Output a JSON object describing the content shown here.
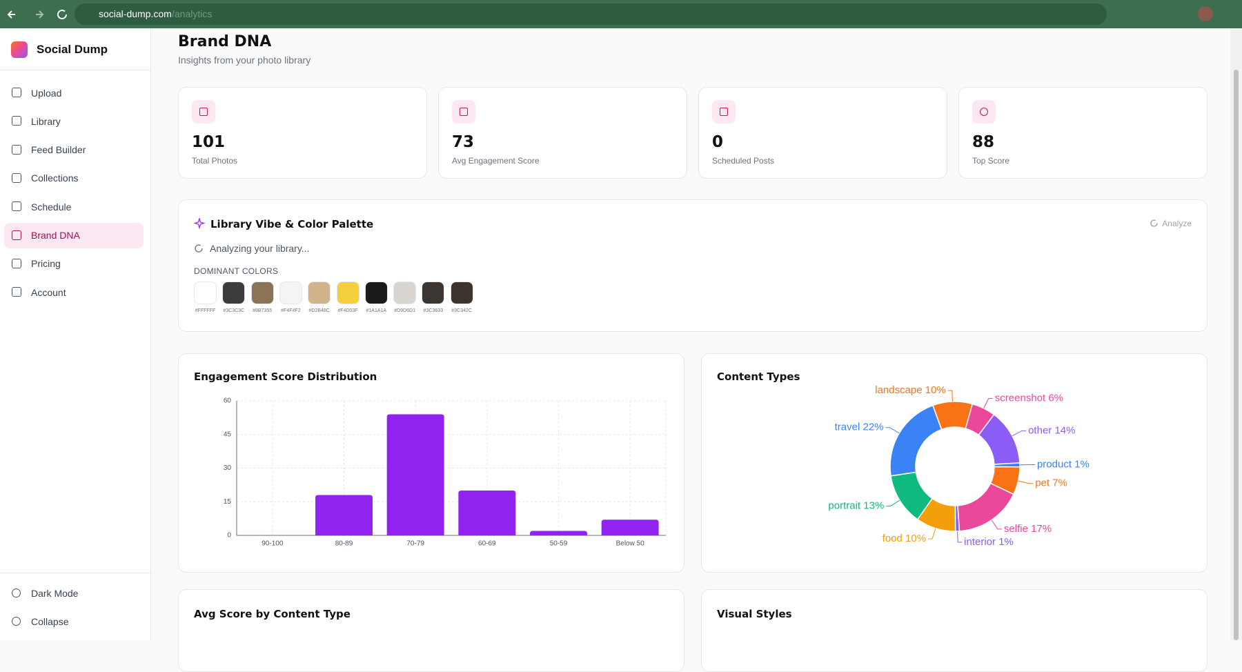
{
  "browser": {
    "url": "social-dump.com",
    "path": "/analytics"
  },
  "sidebar": {
    "brand": "Social Dump",
    "nav": [
      "Upload",
      "Library",
      "Feed Builder",
      "Collections",
      "Schedule",
      "Brand DNA",
      "Pricing",
      "Account"
    ],
    "active": "Brand DNA",
    "footer": [
      "Dark Mode",
      "Collapse"
    ]
  },
  "header": {
    "title": "Brand DNA",
    "subtitle": "Insights from your photo library"
  },
  "stats": [
    {
      "value": 101,
      "label": "Total Photos"
    },
    {
      "value": 73,
      "label": "Avg Engagement Score"
    },
    {
      "value": 0,
      "label": "Scheduled Posts"
    },
    {
      "value": 88,
      "label": "Top Score"
    }
  ],
  "palette": {
    "title": "Library Vibe & Color Palette",
    "action": "Analyze",
    "status": "Analyzing your library...",
    "heading": "DOMINANT COLORS",
    "colors": [
      "#FFFFFF",
      "#3C3C3C",
      "#8B7355",
      "#F4F4F2",
      "#D2B48C",
      "#F4D03F",
      "#1A1A1A",
      "#D9D6D1",
      "#3C3633",
      "#3C342C"
    ]
  },
  "chart_data": [
    {
      "type": "bar",
      "title": "Engagement Score Distribution",
      "categories": [
        "90-100",
        "80-89",
        "70-79",
        "60-69",
        "50-59",
        "Below 50"
      ],
      "values": [
        0,
        18,
        54,
        20,
        2,
        7
      ],
      "color": "#9122f0",
      "ylim": [
        0,
        60
      ],
      "yticks": [
        0,
        15,
        30,
        45,
        60
      ],
      "grid": true
    },
    {
      "type": "pie",
      "title": "Content Types",
      "donut": true,
      "categories": [
        "landscape",
        "screenshot",
        "other",
        "product",
        "pet",
        "selfie",
        "interior",
        "food",
        "portrait",
        "travel"
      ],
      "values": [
        10,
        6,
        14,
        1,
        7,
        17,
        1,
        10,
        13,
        22
      ],
      "value_labels": [
        "landscape 10%",
        "screenshot 6%",
        "other 14%",
        "product 1%",
        "pet 7%",
        "selfie 17%",
        "interior 1%",
        "food 10%",
        "portrait 13%",
        "travel 22%"
      ],
      "colors": [
        "#f97316",
        "#ec4899",
        "#8b5cf6",
        "#3b82f6",
        "#f97316",
        "#ec4899",
        "#8b5cf6",
        "#f59e0b",
        "#10b981",
        "#3b82f6"
      ]
    }
  ],
  "lower_cards": [
    "Avg Score by Content Type",
    "Visual Styles"
  ]
}
